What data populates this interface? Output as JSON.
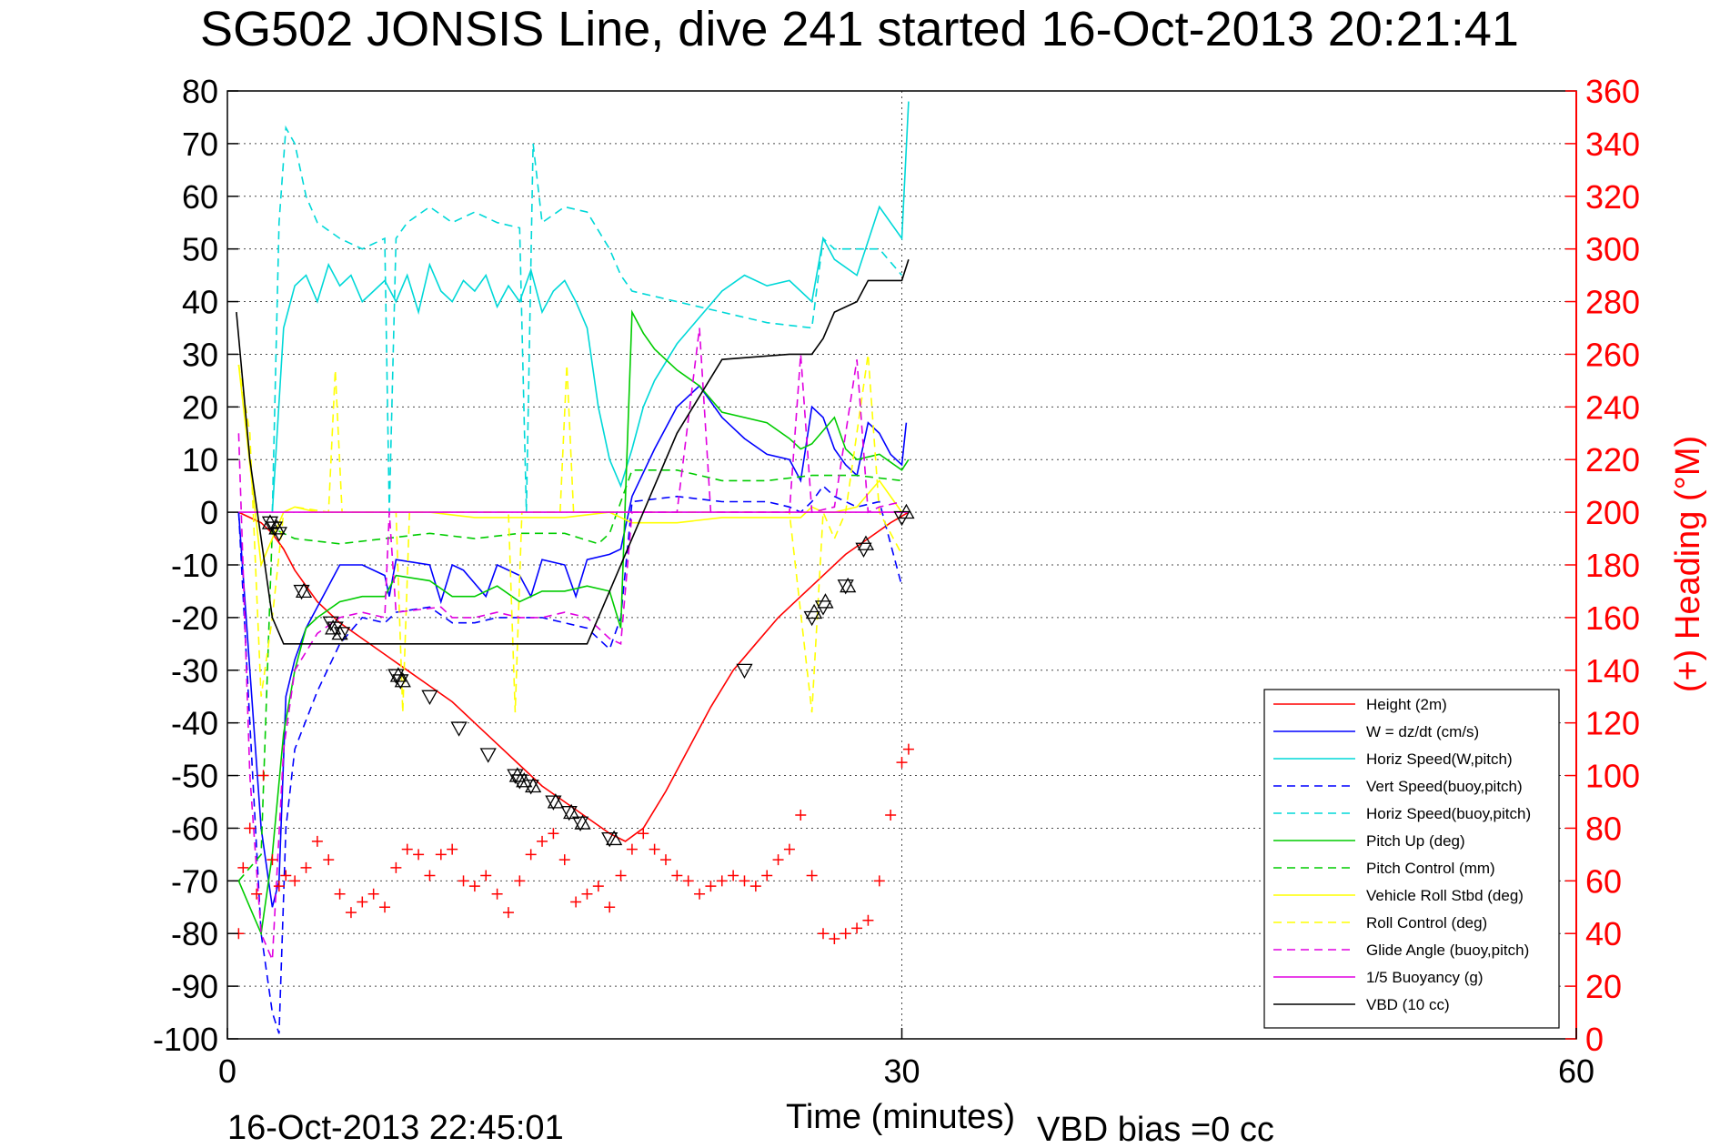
{
  "chart_data": {
    "type": "line",
    "title": "SG502 JONSIS Line, dive 241 started 16-Oct-2013 20:21:41",
    "xlabel": "Time (minutes)",
    "ylabel": "",
    "y2label": "(+) Heading (°M)",
    "xlim": [
      0,
      60
    ],
    "ylim": [
      -100,
      80
    ],
    "y2lim": [
      0,
      360
    ],
    "x_ticks": [
      "0",
      "30",
      "60"
    ],
    "y_ticks": [
      "80",
      "70",
      "60",
      "50",
      "40",
      "30",
      "20",
      "10",
      "0",
      "-10",
      "-20",
      "-30",
      "-40",
      "-50",
      "-60",
      "-70",
      "-80",
      "-90",
      "-100"
    ],
    "y2_ticks": [
      "360",
      "340",
      "320",
      "300",
      "280",
      "260",
      "240",
      "220",
      "200",
      "180",
      "160",
      "140",
      "120",
      "100",
      "80",
      "60",
      "40",
      "20",
      "0"
    ],
    "grid": true,
    "legend_position": "bottom-right",
    "footer_left": "16-Oct-2013 22:45:01",
    "footer_right": "VBD bias =0 cc",
    "series": [
      {
        "name": "Height (2m)",
        "color": "#ff0000",
        "dash": "solid",
        "x": [
          0.5,
          1.0,
          1.5,
          2.0,
          2.5,
          3.0,
          4.0,
          5.0,
          6.0,
          7.0,
          8.0,
          9.0,
          10.0,
          11.0,
          12.0,
          13.0,
          14.0,
          15.0,
          16.0,
          17.0,
          17.7,
          18.5,
          19.5,
          20.5,
          21.5,
          22.5,
          23.5,
          24.5,
          25.5,
          26.5,
          27.5,
          28.5,
          29.5,
          30.3
        ],
        "y": [
          0,
          -1,
          -2,
          -4,
          -7,
          -11,
          -17,
          -21,
          -24,
          -27,
          -30,
          -33,
          -36,
          -40,
          -44,
          -48,
          -52,
          -55,
          -58,
          -61,
          -62.5,
          -60,
          -53,
          -45,
          -37,
          -30,
          -25,
          -20,
          -16,
          -12,
          -8,
          -5,
          -2,
          0
        ]
      },
      {
        "name": "W = dz/dt (cm/s)",
        "color": "#0000ff",
        "dash": "solid",
        "x": [
          0.5,
          1.0,
          1.5,
          2.0,
          2.3,
          2.6,
          3.0,
          3.5,
          4.0,
          4.5,
          5.0,
          6.0,
          7.0,
          7.2,
          7.5,
          9.0,
          9.5,
          10.0,
          10.5,
          11.5,
          12.0,
          13.0,
          13.5,
          14.0,
          15.0,
          15.5,
          16.0,
          17.0,
          17.5,
          18.0,
          19.0,
          20.0,
          21.0,
          22.0,
          23.0,
          24.0,
          25.0,
          25.5,
          26.0,
          26.5,
          27.0,
          27.5,
          28.0,
          28.5,
          29.0,
          29.5,
          30.0,
          30.2
        ],
        "y": [
          0,
          -30,
          -60,
          -75,
          -70,
          -35,
          -28,
          -22,
          -18,
          -14,
          -10,
          -10,
          -12,
          -16,
          -9,
          -10,
          -17,
          -10,
          -11,
          -16,
          -10,
          -12,
          -16,
          -9,
          -10,
          -16,
          -9,
          -8,
          -7,
          3,
          12,
          20,
          24,
          18,
          14,
          11,
          10,
          6,
          20,
          18,
          12,
          9,
          7,
          17,
          15,
          11,
          9,
          17
        ]
      },
      {
        "name": "Horiz Speed(W,pitch)",
        "color": "#00d8d8",
        "dash": "solid",
        "x": [
          2.0,
          2.5,
          3.0,
          3.5,
          4.0,
          4.5,
          5.0,
          5.5,
          6.0,
          6.5,
          7.0,
          7.5,
          8.0,
          8.5,
          9.0,
          9.5,
          10.0,
          10.5,
          11.0,
          11.5,
          12.0,
          12.5,
          13.0,
          13.5,
          14.0,
          14.5,
          15.0,
          15.5,
          16.0,
          16.5,
          17.0,
          17.5,
          18.0,
          18.5,
          19.0,
          20.0,
          21.0,
          22.0,
          23.0,
          24.0,
          25.0,
          26.0,
          26.5,
          27.0,
          28.0,
          29.0,
          30.0,
          30.3
        ],
        "y": [
          0,
          35,
          43,
          45,
          40,
          47,
          43,
          45,
          40,
          42,
          44,
          40,
          45,
          38,
          47,
          42,
          40,
          44,
          42,
          45,
          39,
          43,
          40,
          46,
          38,
          42,
          44,
          40,
          35,
          20,
          10,
          5,
          12,
          20,
          25,
          32,
          37,
          42,
          45,
          43,
          44,
          40,
          52,
          48,
          45,
          58,
          52,
          78
        ]
      },
      {
        "name": "Vert Speed(buoy,pitch)",
        "color": "#0000ff",
        "dash": "dashed",
        "x": [
          0.5,
          1.0,
          1.5,
          2.0,
          2.3,
          2.6,
          3.0,
          4.0,
          5.0,
          6.0,
          7.0,
          7.5,
          9.0,
          10.0,
          11.0,
          12.0,
          13.0,
          14.0,
          15.0,
          16.0,
          17.0,
          17.5,
          18.0,
          20.0,
          22.0,
          24.0,
          25.0,
          25.5,
          26.0,
          26.5,
          27.0,
          28.0,
          29.0,
          30.0
        ],
        "y": [
          0,
          -40,
          -80,
          -95,
          -99,
          -60,
          -45,
          -34,
          -25,
          -20,
          -21,
          -19,
          -18,
          -21,
          -21,
          -20,
          -20,
          -20,
          -21,
          -22,
          -26,
          -20,
          2,
          3,
          2,
          2,
          1,
          0,
          2,
          5,
          3,
          1,
          2,
          -14
        ]
      },
      {
        "name": "Horiz Speed(buoy,pitch)",
        "color": "#00d8d8",
        "dash": "dashed",
        "x": [
          2.0,
          2.3,
          2.6,
          3.0,
          3.5,
          4.0,
          5.0,
          6.0,
          7.0,
          7.2,
          7.5,
          8.0,
          9.0,
          10.0,
          11.0,
          12.0,
          13.0,
          13.3,
          13.6,
          14.0,
          15.0,
          16.0,
          17.0,
          17.5,
          18.0,
          20.0,
          22.0,
          24.0,
          26.0,
          26.5,
          27.0,
          28.0,
          29.0,
          30.0
        ],
        "y": [
          0,
          55,
          73,
          70,
          60,
          55,
          52,
          50,
          52,
          0,
          52,
          55,
          58,
          55,
          57,
          55,
          54,
          0,
          70,
          55,
          58,
          57,
          50,
          45,
          42,
          40,
          38,
          36,
          35,
          52,
          50,
          50,
          50,
          45
        ]
      },
      {
        "name": "Pitch Up (deg)",
        "color": "#00cc00",
        "dash": "solid",
        "x": [
          0.5,
          1.0,
          1.5,
          2.0,
          2.5,
          3.0,
          3.5,
          4.0,
          5.0,
          6.0,
          7.0,
          7.5,
          9.0,
          10.0,
          11.0,
          12.0,
          13.0,
          14.0,
          15.0,
          16.0,
          17.0,
          17.5,
          18.0,
          18.5,
          19.0,
          20.0,
          21.0,
          22.0,
          24.0,
          25.0,
          25.5,
          26.0,
          27.0,
          27.5,
          28.0,
          29.0,
          30.0,
          30.3
        ],
        "y": [
          -70,
          -75,
          -80,
          -65,
          -42,
          -30,
          -22,
          -20,
          -17,
          -16,
          -16,
          -12,
          -13,
          -16,
          -16,
          -14,
          -17,
          -15,
          -15,
          -14,
          -15,
          -22,
          38,
          34,
          31,
          27,
          24,
          19,
          17,
          14,
          12,
          13,
          18,
          12,
          10,
          11,
          8,
          10
        ]
      },
      {
        "name": "Pitch Control (mm)",
        "color": "#00cc00",
        "dash": "dashed",
        "x": [
          0.5,
          1.5,
          2.0,
          3.0,
          5.0,
          7.0,
          9.0,
          11.0,
          13.0,
          15.0,
          16.5,
          17.0,
          18.0,
          20.0,
          22.0,
          24.0,
          26.0,
          28.0,
          30.0
        ],
        "y": [
          -70,
          -65,
          -3,
          -5,
          -6,
          -5,
          -4,
          -5,
          -4,
          -4,
          -6,
          -4,
          8,
          8,
          6,
          6,
          7,
          7,
          6
        ]
      },
      {
        "name": "Vehicle Roll Stbd (deg)",
        "color": "#ffff00",
        "dash": "solid",
        "x": [
          0.5,
          1.5,
          2.0,
          2.5,
          3.0,
          4.0,
          5.0,
          7.0,
          9.0,
          11.0,
          13.0,
          15.0,
          17.0,
          18.0,
          20.0,
          22.0,
          24.0,
          25.5,
          26.0,
          26.5,
          27.0,
          28.0,
          29.0,
          30.0
        ],
        "y": [
          28,
          -10,
          -5,
          0,
          1,
          0,
          0,
          0,
          0,
          -1,
          -1,
          -1,
          0,
          -2,
          -2,
          -1,
          -1,
          -1,
          1,
          0,
          0,
          1,
          6,
          0
        ]
      },
      {
        "name": "Roll Control (deg)",
        "color": "#ffff00",
        "dash": "dashed",
        "x": [
          0.5,
          1.0,
          1.5,
          2.0,
          2.5,
          3.0,
          4.5,
          4.8,
          5.1,
          7.5,
          7.8,
          8.1,
          12.5,
          12.8,
          13.1,
          14.8,
          15.1,
          15.4,
          17.0,
          19.0,
          21.0,
          23.0,
          25.0,
          26.0,
          26.5,
          27.0,
          27.5,
          28.5,
          29.0,
          30.0
        ],
        "y": [
          28,
          15,
          -35,
          -20,
          0,
          1,
          0,
          27,
          0,
          0,
          -38,
          0,
          0,
          -38,
          0,
          0,
          28,
          0,
          0,
          0,
          0,
          0,
          0,
          -38,
          0,
          -5,
          0,
          30,
          0,
          -8
        ]
      },
      {
        "name": "Glide Angle (buoy,pitch)",
        "color": "#e000e0",
        "dash": "dashed",
        "x": [
          0.5,
          1.0,
          1.5,
          2.0,
          2.5,
          3.0,
          4.0,
          5.0,
          6.0,
          7.0,
          7.2,
          7.5,
          9.5,
          10.0,
          11.0,
          12.0,
          13.0,
          14.0,
          15.0,
          16.0,
          17.0,
          17.5,
          18.0,
          20.0,
          21.0,
          21.5,
          22.0,
          25.0,
          25.5,
          26.0,
          27.0,
          28.0,
          28.5,
          29.0,
          30.0
        ],
        "y": [
          15,
          -50,
          -80,
          -85,
          -45,
          -30,
          -23,
          -20,
          -19,
          -20,
          0,
          -19,
          -18,
          -20,
          -20,
          -19,
          -20,
          -20,
          -19,
          -20,
          -24,
          -25,
          0,
          0,
          35,
          0,
          0,
          0,
          30,
          0,
          1,
          29,
          0,
          1,
          2
        ]
      },
      {
        "name": "1/5 Buoyancy (g)",
        "color": "#e000e0",
        "dash": "solid",
        "x": [
          0.5,
          2.0,
          4.0,
          6.0,
          8.0,
          10.0,
          12.0,
          14.0,
          16.0,
          17.0,
          18.0,
          19.0,
          20.0,
          21.0,
          21.5,
          22.0,
          24.0,
          25.0,
          26.0,
          27.0,
          28.0,
          29.0,
          30.0,
          30.3
        ],
        "y": [
          0,
          0,
          0,
          0,
          0,
          0,
          0,
          0,
          0,
          0,
          0,
          0,
          0,
          0,
          0,
          0,
          0,
          0,
          0,
          0,
          0,
          0,
          0,
          0
        ]
      },
      {
        "name": "VBD (10 cc)",
        "color": "#000000",
        "dash": "solid",
        "x": [
          0.4,
          1.0,
          1.5,
          2.0,
          2.5,
          5.0,
          10.0,
          15.0,
          16.0,
          17.0,
          18.0,
          19.0,
          20.0,
          21.0,
          22.0,
          25.0,
          26.0,
          26.5,
          27.0,
          28.0,
          28.5,
          30.0,
          30.3
        ],
        "y": [
          38,
          10,
          -5,
          -20,
          -25,
          -25,
          -25,
          -25,
          -25,
          -15,
          -5,
          5,
          15,
          22,
          29,
          30,
          30,
          33,
          38,
          40,
          44,
          44,
          48
        ]
      }
    ],
    "heading_series": {
      "name": "(+) Heading (°M)",
      "color": "#ff0000",
      "marker": "+",
      "x": [
        0.5,
        0.7,
        1.0,
        1.3,
        1.6,
        2.0,
        2.3,
        2.6,
        3.0,
        3.5,
        4.0,
        4.5,
        5.0,
        5.5,
        6.0,
        6.5,
        7.0,
        7.5,
        8.0,
        8.5,
        9.0,
        9.5,
        10.0,
        10.5,
        11.0,
        11.5,
        12.0,
        12.5,
        13.0,
        13.5,
        14.0,
        14.5,
        15.0,
        15.5,
        16.0,
        16.5,
        17.0,
        17.5,
        18.0,
        18.5,
        19.0,
        19.5,
        20.0,
        20.5,
        21.0,
        21.5,
        22.0,
        22.5,
        23.0,
        23.5,
        24.0,
        24.5,
        25.0,
        25.5,
        26.0,
        26.5,
        27.0,
        27.5,
        28.0,
        28.5,
        29.0,
        29.5,
        30.0,
        30.3
      ],
      "y": [
        40,
        65,
        80,
        55,
        100,
        68,
        58,
        62,
        60,
        65,
        75,
        68,
        55,
        48,
        52,
        55,
        50,
        65,
        72,
        70,
        62,
        70,
        72,
        60,
        58,
        62,
        55,
        48,
        60,
        70,
        75,
        78,
        68,
        52,
        55,
        58,
        50,
        62,
        72,
        78,
        72,
        68,
        62,
        60,
        55,
        58,
        60,
        62,
        60,
        58,
        62,
        68,
        72,
        85,
        62,
        40,
        38,
        40,
        42,
        45,
        60,
        85,
        105,
        110
      ]
    },
    "dive_markers": {
      "down_x": [
        1.9,
        2.1,
        2.3,
        3.3,
        4.6,
        4.8,
        5.1,
        7.5,
        7.7,
        9.0,
        10.3,
        11.6,
        12.8,
        13.0,
        13.5,
        14.5,
        15.2,
        15.7,
        17.0,
        23.0,
        26.0,
        26.5,
        27.5,
        28.3,
        30.0
      ],
      "down_y": [
        -2,
        -3,
        -4,
        -15,
        -21,
        -22,
        -23,
        -31,
        -32,
        -35,
        -41,
        -46,
        -50,
        -51,
        -52,
        -55,
        -57,
        -59,
        -62,
        -30,
        -20,
        -18,
        -14,
        -7,
        -1
      ],
      "up_x": [
        1.9,
        2.2,
        3.4,
        4.7,
        5.0,
        7.6,
        7.8,
        12.9,
        13.2,
        13.6,
        14.6,
        15.3,
        15.8,
        17.2,
        26.1,
        26.6,
        27.6,
        28.4,
        30.2
      ],
      "up_y": [
        -2,
        -3,
        -15,
        -22,
        -23,
        -31,
        -32,
        -50,
        -51,
        -52,
        -55,
        -57,
        -59,
        -62,
        -19,
        -17,
        -14,
        -6,
        0
      ]
    }
  }
}
